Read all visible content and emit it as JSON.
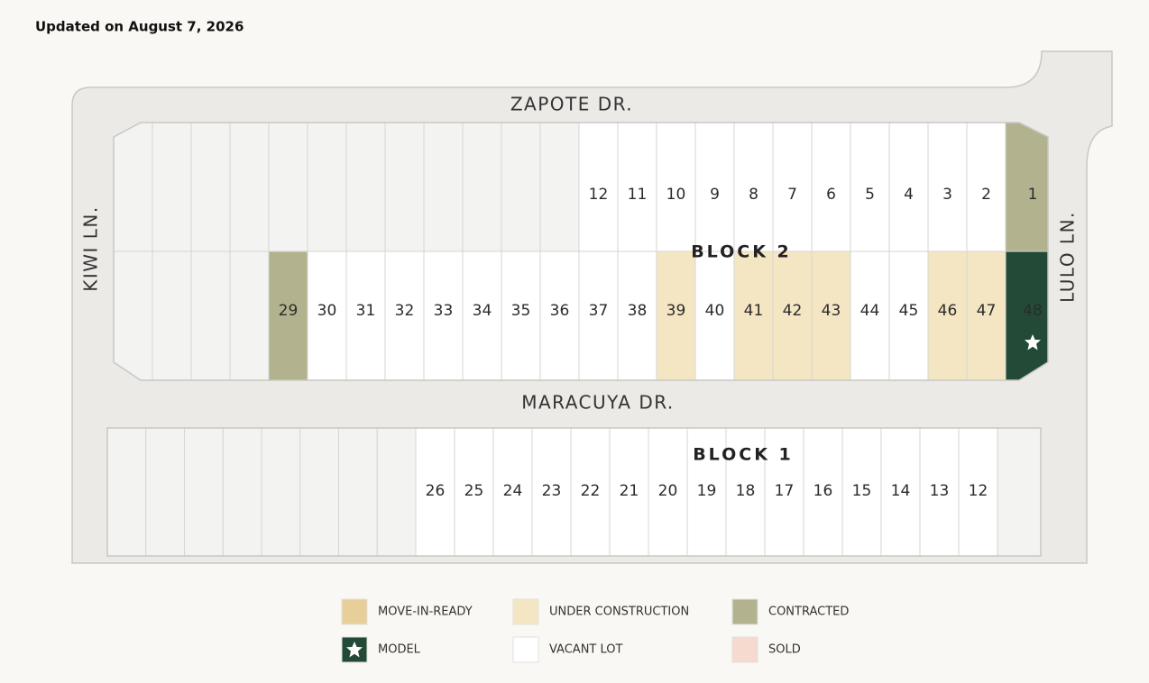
{
  "updated": "Updated on August 7, 2026",
  "streets": {
    "top": "ZAPOTE DR.",
    "left": "KIWI LN.",
    "right": "LULO LN.",
    "middle": "MARACUYA DR."
  },
  "status_colors": {
    "move_in_ready": "#e8cf9a",
    "under_construction": "#f4e6c3",
    "contracted": "#b2b38e",
    "model": "#234a37",
    "vacant": "#ffffff",
    "sold": "#f6d9cf"
  },
  "block2": {
    "label": "BLOCK 2",
    "top_row": [
      {
        "label": "12",
        "status": "vacant"
      },
      {
        "label": "11",
        "status": "vacant"
      },
      {
        "label": "10",
        "status": "vacant"
      },
      {
        "label": "9",
        "status": "vacant"
      },
      {
        "label": "8",
        "status": "vacant"
      },
      {
        "label": "7",
        "status": "vacant"
      },
      {
        "label": "6",
        "status": "vacant"
      },
      {
        "label": "5",
        "status": "vacant"
      },
      {
        "label": "4",
        "status": "vacant"
      },
      {
        "label": "3",
        "status": "vacant"
      },
      {
        "label": "2",
        "status": "vacant"
      },
      {
        "label": "1",
        "status": "contracted"
      }
    ],
    "bottom_row": [
      {
        "label": "29",
        "status": "contracted"
      },
      {
        "label": "30",
        "status": "vacant"
      },
      {
        "label": "31",
        "status": "vacant"
      },
      {
        "label": "32",
        "status": "vacant"
      },
      {
        "label": "33",
        "status": "vacant"
      },
      {
        "label": "34",
        "status": "vacant"
      },
      {
        "label": "35",
        "status": "vacant"
      },
      {
        "label": "36",
        "status": "vacant"
      },
      {
        "label": "37",
        "status": "vacant"
      },
      {
        "label": "38",
        "status": "vacant"
      },
      {
        "label": "39",
        "status": "under_construction"
      },
      {
        "label": "40",
        "status": "vacant"
      },
      {
        "label": "41",
        "status": "under_construction"
      },
      {
        "label": "42",
        "status": "under_construction"
      },
      {
        "label": "43",
        "status": "under_construction"
      },
      {
        "label": "44",
        "status": "vacant"
      },
      {
        "label": "45",
        "status": "vacant"
      },
      {
        "label": "46",
        "status": "under_construction"
      },
      {
        "label": "47",
        "status": "under_construction"
      },
      {
        "label": "48",
        "status": "model"
      }
    ]
  },
  "block1": {
    "label": "BLOCK 1",
    "lots": [
      {
        "label": "26",
        "status": "vacant"
      },
      {
        "label": "25",
        "status": "vacant"
      },
      {
        "label": "24",
        "status": "vacant"
      },
      {
        "label": "23",
        "status": "vacant"
      },
      {
        "label": "22",
        "status": "vacant"
      },
      {
        "label": "21",
        "status": "vacant"
      },
      {
        "label": "20",
        "status": "vacant"
      },
      {
        "label": "19",
        "status": "vacant"
      },
      {
        "label": "18",
        "status": "vacant"
      },
      {
        "label": "17",
        "status": "vacant"
      },
      {
        "label": "16",
        "status": "vacant"
      },
      {
        "label": "15",
        "status": "vacant"
      },
      {
        "label": "14",
        "status": "vacant"
      },
      {
        "label": "13",
        "status": "vacant"
      },
      {
        "label": "12",
        "status": "vacant"
      }
    ]
  },
  "legend": [
    {
      "label": "MOVE-IN-READY",
      "status": "move_in_ready"
    },
    {
      "label": "UNDER CONSTRUCTION",
      "status": "under_construction"
    },
    {
      "label": "CONTRACTED",
      "status": "contracted"
    },
    {
      "label": "MODEL",
      "status": "model"
    },
    {
      "label": "VACANT LOT",
      "status": "vacant"
    },
    {
      "label": "SOLD",
      "status": "sold"
    }
  ]
}
